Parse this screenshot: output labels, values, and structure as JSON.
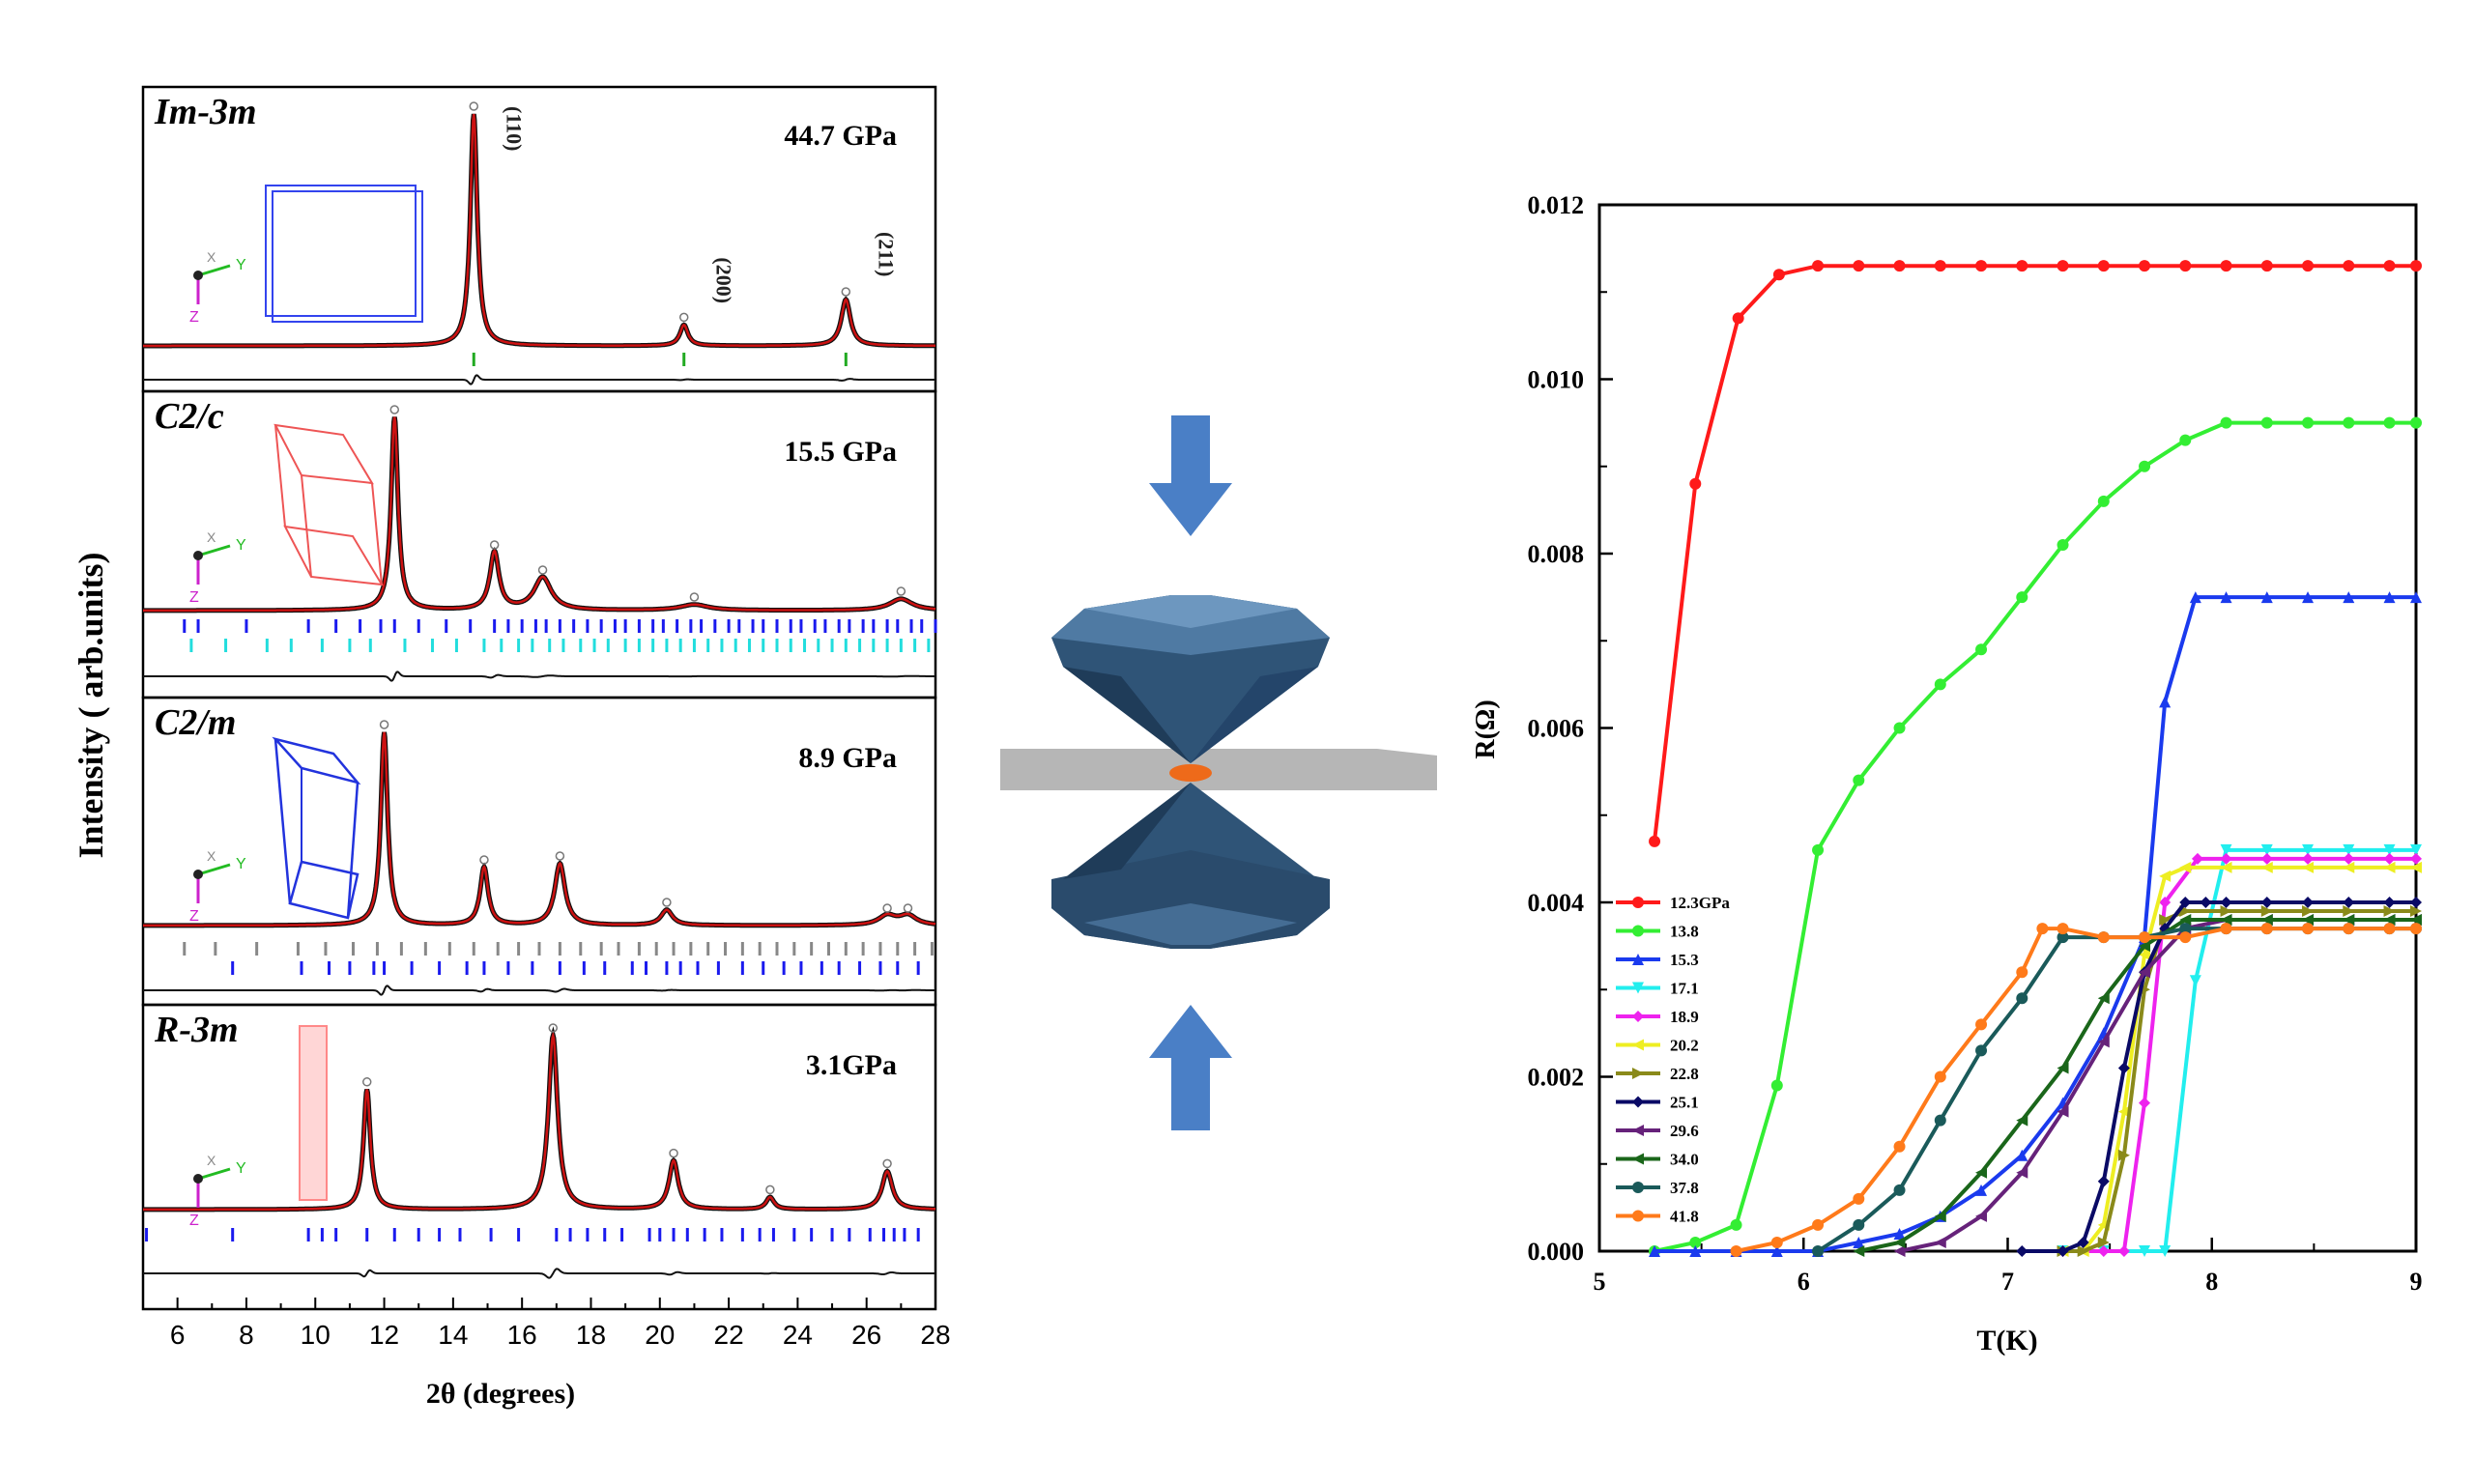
{
  "left_panel": {
    "ylabel": "Intensity ( arb.units)",
    "xlabel": "2θ (degrees)",
    "x_ticks": [
      "6",
      "8",
      "10",
      "12",
      "14",
      "16",
      "18",
      "20",
      "22",
      "24",
      "26",
      "28"
    ],
    "x_range": [
      5,
      28
    ],
    "subplots": [
      {
        "phase": "Im-3m",
        "pressure": "44.7 GPa",
        "peaks": [
          {
            "x": 14.6,
            "h": 1.0,
            "w": 0.12
          },
          {
            "x": 20.7,
            "h": 0.09,
            "w": 0.14
          },
          {
            "x": 25.4,
            "h": 0.2,
            "w": 0.16
          }
        ],
        "hkl": [
          {
            "label": "(110)",
            "x": 14.6
          },
          {
            "label": "(200)",
            "x": 20.7
          },
          {
            "label": "(211)",
            "x": 25.4
          }
        ],
        "ticks": [
          {
            "color": "#22aa22",
            "positions": [
              14.6,
              20.7,
              25.4
            ]
          }
        ],
        "axes_labels": [
          "X",
          "Y",
          "Z"
        ]
      },
      {
        "phase": "C2/c",
        "pressure": "15.5 GPa",
        "peaks": [
          {
            "x": 12.3,
            "h": 1.0,
            "w": 0.12
          },
          {
            "x": 15.2,
            "h": 0.3,
            "w": 0.16
          },
          {
            "x": 16.6,
            "h": 0.17,
            "w": 0.3
          },
          {
            "x": 21.0,
            "h": 0.03,
            "w": 0.5
          },
          {
            "x": 27.0,
            "h": 0.06,
            "w": 0.4
          }
        ],
        "hkl": [],
        "ticks": [
          {
            "color": "#1a1aee",
            "positions": [
              6.2,
              6.6,
              8.0,
              9.8,
              10.6,
              11.3,
              11.9,
              12.3,
              13.0,
              13.8,
              14.5,
              15.2,
              15.6,
              16.0,
              16.4,
              16.7,
              17.1,
              17.5,
              17.9,
              18.3,
              18.7,
              19.0,
              19.4,
              19.8,
              20.1,
              20.5,
              20.9,
              21.2,
              21.6,
              22.0,
              22.3,
              22.7,
              23.0,
              23.4,
              23.8,
              24.1,
              24.5,
              24.8,
              25.2,
              25.5,
              25.9,
              26.2,
              26.6,
              26.9,
              27.3,
              27.6,
              28.0
            ]
          },
          {
            "color": "#22dddd",
            "positions": [
              6.4,
              7.4,
              8.6,
              9.3,
              10.2,
              11.0,
              11.6,
              12.6,
              13.4,
              14.1,
              14.9,
              15.4,
              15.9,
              16.3,
              16.8,
              17.2,
              17.7,
              18.1,
              18.5,
              19.0,
              19.4,
              19.8,
              20.2,
              20.6,
              21.0,
              21.4,
              21.8,
              22.2,
              22.6,
              23.0,
              23.4,
              23.8,
              24.2,
              24.6,
              25.0,
              25.4,
              25.8,
              26.2,
              26.6,
              27.0,
              27.4,
              27.8
            ]
          }
        ],
        "axes_labels": [
          "X",
          "Y",
          "Z"
        ]
      },
      {
        "phase": "C2/m",
        "pressure": "8.9 GPa",
        "peaks": [
          {
            "x": 12.0,
            "h": 1.0,
            "w": 0.12
          },
          {
            "x": 14.9,
            "h": 0.3,
            "w": 0.14
          },
          {
            "x": 17.1,
            "h": 0.32,
            "w": 0.18
          },
          {
            "x": 20.2,
            "h": 0.08,
            "w": 0.2
          },
          {
            "x": 26.6,
            "h": 0.05,
            "w": 0.3
          },
          {
            "x": 27.2,
            "h": 0.05,
            "w": 0.3
          }
        ],
        "hkl": [],
        "ticks": [
          {
            "color": "#888888",
            "positions": [
              6.2,
              7.1,
              8.3,
              9.5,
              10.3,
              11.1,
              11.8,
              12.5,
              13.2,
              13.9,
              14.6,
              15.3,
              15.9,
              16.5,
              17.1,
              17.7,
              18.3,
              18.8,
              19.4,
              19.9,
              20.4,
              20.9,
              21.4,
              21.9,
              22.4,
              22.9,
              23.4,
              23.9,
              24.4,
              24.9,
              25.4,
              25.9,
              26.4,
              26.9,
              27.4,
              27.9
            ]
          },
          {
            "color": "#1a1aee",
            "positions": [
              7.6,
              9.6,
              10.4,
              11.0,
              11.7,
              12.0,
              12.8,
              13.6,
              14.4,
              14.9,
              15.6,
              16.3,
              17.1,
              17.8,
              18.4,
              19.2,
              19.6,
              20.2,
              20.6,
              21.1,
              21.7,
              22.4,
              23.0,
              23.6,
              24.1,
              24.7,
              25.2,
              25.8,
              26.4,
              26.9,
              27.5
            ]
          }
        ],
        "axes_labels": [
          "X",
          "Y",
          "Z"
        ]
      },
      {
        "phase": "R-3m",
        "pressure": "3.1GPa",
        "peaks": [
          {
            "x": 11.5,
            "h": 0.69,
            "w": 0.12
          },
          {
            "x": 16.9,
            "h": 1.0,
            "w": 0.16
          },
          {
            "x": 20.4,
            "h": 0.28,
            "w": 0.16
          },
          {
            "x": 23.2,
            "h": 0.07,
            "w": 0.14
          },
          {
            "x": 26.6,
            "h": 0.22,
            "w": 0.18
          }
        ],
        "hkl": [],
        "ticks": [
          {
            "color": "#1a1aee",
            "positions": [
              5.1,
              7.6,
              9.8,
              10.2,
              10.6,
              11.5,
              12.3,
              13.0,
              13.6,
              14.2,
              15.1,
              15.9,
              17.0,
              17.4,
              17.9,
              18.4,
              18.9,
              19.7,
              20.0,
              20.4,
              20.8,
              21.3,
              21.8,
              22.4,
              22.9,
              23.3,
              23.9,
              24.4,
              25.0,
              25.5,
              26.1,
              26.5,
              26.8,
              27.1,
              27.5
            ]
          }
        ],
        "axes_labels": [
          "X",
          "Y",
          "Z"
        ]
      }
    ]
  },
  "middle": {
    "arrow_color": "#4a7fc6",
    "diamond_color": "#2f5477",
    "sample_color": "#ee6a1a"
  },
  "chart_data": {
    "type": "line",
    "xlabel": "T(K)",
    "ylabel": "R(Ω)",
    "xlim": [
      5,
      9
    ],
    "ylim": [
      0,
      0.012
    ],
    "x_ticks": [
      "5",
      "6",
      "7",
      "8",
      "9"
    ],
    "y_ticks": [
      "0.000",
      "0.002",
      "0.004",
      "0.006",
      "0.008",
      "0.010",
      "0.012"
    ],
    "grid": false,
    "legend_position": "bottom-left",
    "series": [
      {
        "name": "12.3GPa",
        "color": "#ff1a1a",
        "marker": "circle",
        "x": [
          5.27,
          5.47,
          5.68,
          5.88,
          6.07,
          6.27,
          6.47,
          6.67,
          6.87,
          7.07,
          7.27,
          7.47,
          7.67,
          7.87,
          8.07,
          8.27,
          8.47,
          8.67,
          8.87,
          9.0
        ],
        "y": [
          0.0047,
          0.0088,
          0.0107,
          0.0112,
          0.0113,
          0.0113,
          0.0113,
          0.0113,
          0.0113,
          0.0113,
          0.0113,
          0.0113,
          0.0113,
          0.0113,
          0.0113,
          0.0113,
          0.0113,
          0.0113,
          0.0113,
          0.0113
        ]
      },
      {
        "name": "13.8",
        "color": "#33ee33",
        "marker": "circle",
        "x": [
          5.27,
          5.47,
          5.67,
          5.87,
          6.07,
          6.27,
          6.47,
          6.67,
          6.87,
          7.07,
          7.27,
          7.47,
          7.67,
          7.87,
          8.07,
          8.27,
          8.47,
          8.67,
          8.87,
          9.0
        ],
        "y": [
          0.0,
          0.0001,
          0.0003,
          0.0019,
          0.0046,
          0.0054,
          0.006,
          0.0065,
          0.0069,
          0.0075,
          0.0081,
          0.0086,
          0.009,
          0.0093,
          0.0095,
          0.0095,
          0.0095,
          0.0095,
          0.0095,
          0.0095
        ]
      },
      {
        "name": "15.3",
        "color": "#1a3aee",
        "marker": "triangle-up",
        "x": [
          5.27,
          5.47,
          5.67,
          5.87,
          6.07,
          6.27,
          6.47,
          6.67,
          6.87,
          7.07,
          7.27,
          7.47,
          7.67,
          7.77,
          7.92,
          8.07,
          8.27,
          8.47,
          8.67,
          8.87,
          9.0
        ],
        "y": [
          0.0,
          0.0,
          0.0,
          0.0,
          0.0,
          0.0001,
          0.0002,
          0.0004,
          0.0007,
          0.0011,
          0.0017,
          0.0025,
          0.0036,
          0.0063,
          0.0075,
          0.0075,
          0.0075,
          0.0075,
          0.0075,
          0.0075,
          0.0075
        ]
      },
      {
        "name": "17.1",
        "color": "#22eeee",
        "marker": "triangle-down",
        "x": [
          7.27,
          7.47,
          7.67,
          7.77,
          7.92,
          8.07,
          8.27,
          8.47,
          8.67,
          8.87,
          9.0
        ],
        "y": [
          0.0,
          0.0,
          0.0,
          0.0,
          0.0031,
          0.0046,
          0.0046,
          0.0046,
          0.0046,
          0.0046,
          0.0046
        ]
      },
      {
        "name": "18.9",
        "color": "#ee22ee",
        "marker": "diamond",
        "x": [
          7.27,
          7.47,
          7.57,
          7.67,
          7.77,
          7.93,
          8.07,
          8.27,
          8.47,
          8.67,
          8.87,
          9.0
        ],
        "y": [
          0.0,
          0.0,
          0.0,
          0.0017,
          0.004,
          0.0045,
          0.0045,
          0.0045,
          0.0045,
          0.0045,
          0.0045,
          0.0045
        ]
      },
      {
        "name": "20.2",
        "color": "#eeee22",
        "marker": "triangle-left",
        "x": [
          7.27,
          7.37,
          7.47,
          7.57,
          7.67,
          7.77,
          7.87,
          8.07,
          8.27,
          8.47,
          8.67,
          8.87,
          9.0
        ],
        "y": [
          0.0,
          0.0,
          0.0003,
          0.0016,
          0.0034,
          0.0043,
          0.0044,
          0.0044,
          0.0044,
          0.0044,
          0.0044,
          0.0044,
          0.0044
        ]
      },
      {
        "name": "22.8",
        "color": "#8a8a1a",
        "marker": "triangle-right",
        "x": [
          7.27,
          7.37,
          7.47,
          7.57,
          7.67,
          7.77,
          7.87,
          8.07,
          8.27,
          8.47,
          8.67,
          8.87,
          9.0
        ],
        "y": [
          0.0,
          0.0,
          0.0001,
          0.0011,
          0.003,
          0.0038,
          0.0039,
          0.0039,
          0.0039,
          0.0039,
          0.0039,
          0.0039,
          0.0039
        ]
      },
      {
        "name": "25.1",
        "color": "#0a0a66",
        "marker": "diamond",
        "x": [
          7.07,
          7.27,
          7.37,
          7.47,
          7.57,
          7.67,
          7.77,
          7.87,
          7.97,
          8.07,
          8.27,
          8.47,
          8.67,
          8.87,
          9.0
        ],
        "y": [
          0.0,
          0.0,
          0.0001,
          0.0008,
          0.0021,
          0.0032,
          0.0037,
          0.004,
          0.004,
          0.004,
          0.004,
          0.004,
          0.004,
          0.004,
          0.004
        ]
      },
      {
        "name": "29.6",
        "color": "#66227a",
        "marker": "triangle-left",
        "x": [
          6.47,
          6.67,
          6.87,
          7.07,
          7.27,
          7.47,
          7.67,
          7.87,
          8.07,
          8.27,
          8.47,
          8.67,
          8.87,
          9.0
        ],
        "y": [
          0.0,
          0.0001,
          0.0004,
          0.0009,
          0.0016,
          0.0024,
          0.0032,
          0.0037,
          0.0038,
          0.0038,
          0.0038,
          0.0038,
          0.0038,
          0.0038
        ]
      },
      {
        "name": "34.0",
        "color": "#1a661a",
        "marker": "triangle-left",
        "x": [
          6.27,
          6.47,
          6.67,
          6.87,
          7.07,
          7.27,
          7.47,
          7.67,
          7.87,
          8.07,
          8.27,
          8.47,
          8.67,
          8.87,
          9.0
        ],
        "y": [
          0.0,
          0.0001,
          0.0004,
          0.0009,
          0.0015,
          0.0021,
          0.0029,
          0.0035,
          0.0038,
          0.0038,
          0.0038,
          0.0038,
          0.0038,
          0.0038,
          0.0038
        ]
      },
      {
        "name": "37.8",
        "color": "#1a5a5a",
        "marker": "circle",
        "x": [
          6.07,
          6.27,
          6.47,
          6.67,
          6.87,
          7.07,
          7.27,
          7.47,
          7.67,
          7.87,
          8.07,
          8.27,
          8.47,
          8.67,
          8.87,
          9.0
        ],
        "y": [
          0.0,
          0.0003,
          0.0007,
          0.0015,
          0.0023,
          0.0029,
          0.0036,
          0.0036,
          0.0036,
          0.0037,
          0.0037,
          0.0037,
          0.0037,
          0.0037,
          0.0037,
          0.0037
        ]
      },
      {
        "name": "41.8",
        "color": "#ff7a1a",
        "marker": "circle",
        "x": [
          5.67,
          5.87,
          6.07,
          6.27,
          6.47,
          6.67,
          6.87,
          7.07,
          7.17,
          7.27,
          7.47,
          7.67,
          7.87,
          8.07,
          8.27,
          8.47,
          8.67,
          8.87,
          9.0
        ],
        "y": [
          0.0,
          0.0001,
          0.0003,
          0.0006,
          0.0012,
          0.002,
          0.0026,
          0.0032,
          0.0037,
          0.0037,
          0.0036,
          0.0036,
          0.0036,
          0.0037,
          0.0037,
          0.0037,
          0.0037,
          0.0037,
          0.0037
        ]
      }
    ]
  }
}
